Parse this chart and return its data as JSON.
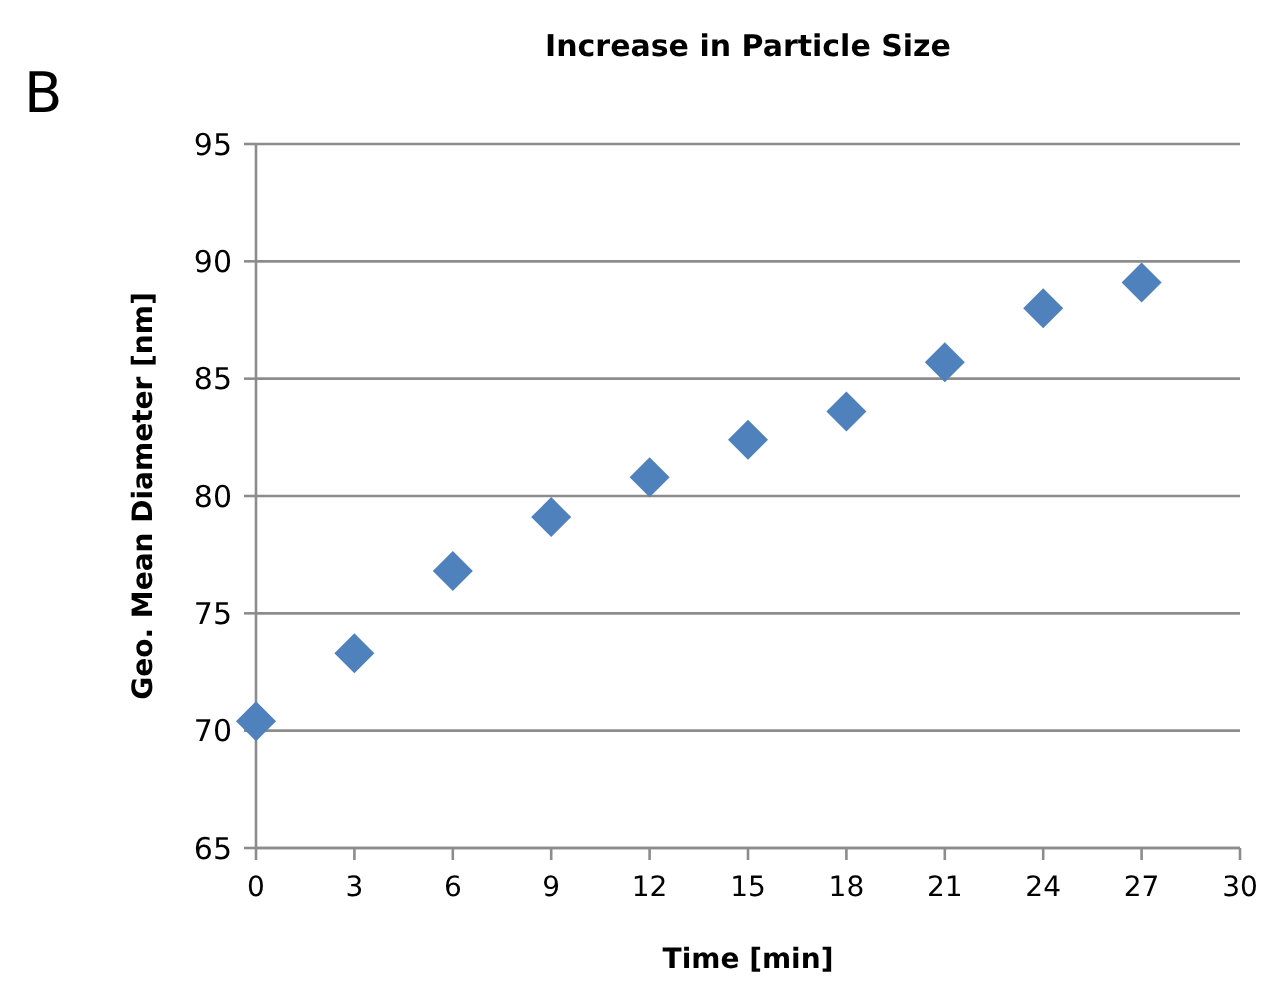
{
  "chart_data": {
    "type": "scatter",
    "title": "Increase in Particle Size",
    "xlabel": "Time [min]",
    "ylabel": "Geo. Mean Diameter [nm]",
    "annotations": [
      "B"
    ],
    "x": [
      0,
      3,
      6,
      9,
      12,
      15,
      18,
      21,
      24,
      27
    ],
    "series": [
      {
        "color": "#4f81bd",
        "values": [
          70.4,
          73.3,
          76.8,
          79.1,
          80.8,
          82.4,
          83.6,
          85.7,
          88.0,
          89.1
        ]
      }
    ],
    "xlim": [
      0,
      30
    ],
    "xticks": [
      0,
      3,
      6,
      9,
      12,
      15,
      18,
      21,
      24,
      27,
      30
    ],
    "ylim": [
      65,
      95
    ],
    "yticks": [
      65,
      70,
      75,
      80,
      85,
      90,
      95
    ],
    "grid": "y",
    "marker": "diamond"
  }
}
